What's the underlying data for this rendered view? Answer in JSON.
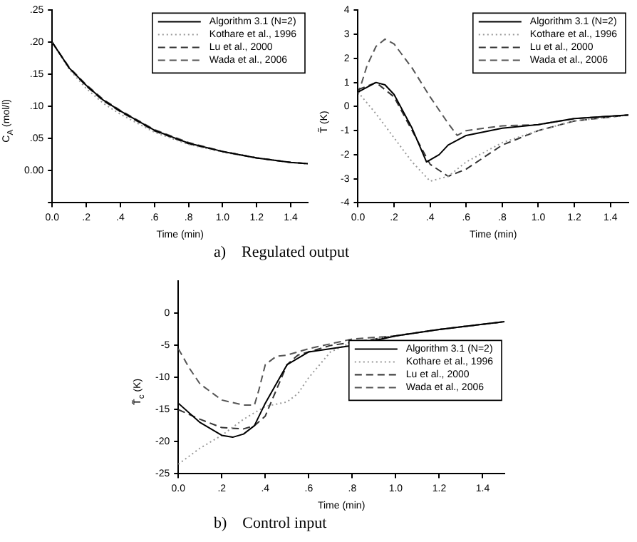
{
  "chart_data": [
    {
      "type": "line",
      "xlabel": "Time (min)",
      "ylabel": "C$_{A}$ (mol/l)",
      "annotations": [
        "a)    Regulated output"
      ],
      "xlim": [
        0,
        1.5
      ],
      "ylim": [
        -0.05,
        0.25
      ],
      "xticks": [
        {
          "value": 0,
          "label": "0.0"
        },
        {
          "value": 0.2,
          "label": ".2"
        },
        {
          "value": 0.4,
          "label": ".4"
        },
        {
          "value": 0.6,
          "label": ".6"
        },
        {
          "value": 0.8,
          "label": ".8"
        },
        {
          "value": 1.0,
          "label": "1.0"
        },
        {
          "value": 1.2,
          "label": "1.2"
        },
        {
          "value": 1.4,
          "label": "1.4"
        }
      ],
      "yticks": [
        {
          "value": -0.05,
          "label": null
        },
        {
          "value": 0,
          "label": "0.00"
        },
        {
          "value": 0.05,
          "label": ".05"
        },
        {
          "value": 0.1,
          "label": ".10"
        },
        {
          "value": 0.15,
          "label": ".15"
        },
        {
          "value": 0.2,
          "label": ".20"
        },
        {
          "value": 0.25,
          "label": ".25"
        }
      ],
      "grid": false,
      "legend": "top right",
      "marker": "none",
      "series": [
        {
          "name": "Algorithm 3.1 (N=2)",
          "color": "#000000",
          "line_style": "solid",
          "x": [
            0,
            0.1,
            0.2,
            0.3,
            0.4,
            0.6,
            0.8,
            1.0,
            1.2,
            1.4,
            1.5
          ],
          "values": [
            0.2,
            0.16,
            0.133,
            0.11,
            0.093,
            0.063,
            0.043,
            0.03,
            0.02,
            0.013,
            0.011
          ]
        },
        {
          "name": "Kothare et al., 1996",
          "color": "#999999",
          "line_style": "dotted",
          "x": [
            0,
            0.1,
            0.2,
            0.3,
            0.4,
            0.6,
            0.8,
            1.0,
            1.2,
            1.4,
            1.5
          ],
          "values": [
            0.2,
            0.158,
            0.128,
            0.105,
            0.088,
            0.06,
            0.041,
            0.029,
            0.02,
            0.013,
            0.011
          ]
        },
        {
          "name": "Lu et al., 2000",
          "color": "#333333",
          "line_style": "dashed",
          "x": [
            0,
            0.1,
            0.2,
            0.3,
            0.4,
            0.6,
            0.8,
            1.0,
            1.2,
            1.4,
            1.5
          ],
          "values": [
            0.2,
            0.16,
            0.132,
            0.109,
            0.092,
            0.062,
            0.042,
            0.03,
            0.02,
            0.013,
            0.011
          ]
        },
        {
          "name": "Wada et al., 2006",
          "color": "#555555",
          "line_style": "dashed",
          "x": [
            0,
            0.1,
            0.2,
            0.3,
            0.4,
            0.6,
            0.8,
            1.0,
            1.2,
            1.4,
            1.5
          ],
          "values": [
            0.2,
            0.161,
            0.134,
            0.111,
            0.094,
            0.064,
            0.044,
            0.03,
            0.02,
            0.013,
            0.011
          ]
        }
      ]
    },
    {
      "type": "line",
      "xlabel": "Time (min)",
      "ylabel": "T̃ (K)",
      "xlim": [
        0,
        1.5
      ],
      "ylim": [
        -4,
        4
      ],
      "xticks": [
        {
          "value": 0,
          "label": "0.0"
        },
        {
          "value": 0.2,
          "label": ".2"
        },
        {
          "value": 0.4,
          "label": ".4"
        },
        {
          "value": 0.6,
          "label": ".6"
        },
        {
          "value": 0.8,
          "label": ".8"
        },
        {
          "value": 1.0,
          "label": "1.0"
        },
        {
          "value": 1.2,
          "label": "1.2"
        },
        {
          "value": 1.4,
          "label": "1.4"
        }
      ],
      "yticks": [
        -4,
        -3,
        -2,
        -1,
        0,
        1,
        2,
        3,
        4
      ],
      "grid": false,
      "legend": "top right",
      "marker": "none",
      "series": [
        {
          "name": "Algorithm 3.1 (N=2)",
          "color": "#000000",
          "line_style": "solid",
          "x": [
            0,
            0.1,
            0.15,
            0.2,
            0.3,
            0.38,
            0.45,
            0.5,
            0.6,
            0.8,
            1.0,
            1.2,
            1.5
          ],
          "values": [
            0.6,
            1.0,
            0.9,
            0.5,
            -0.9,
            -2.3,
            -2.0,
            -1.6,
            -1.2,
            -0.9,
            -0.75,
            -0.5,
            -0.35
          ]
        },
        {
          "name": "Kothare et al., 1996",
          "color": "#999999",
          "line_style": "dotted",
          "x": [
            0,
            0.1,
            0.2,
            0.3,
            0.4,
            0.5,
            0.6,
            0.8,
            1.0,
            1.2,
            1.5
          ],
          "values": [
            0.6,
            -0.3,
            -1.3,
            -2.3,
            -3.1,
            -2.9,
            -2.3,
            -1.5,
            -1.0,
            -0.6,
            -0.35
          ]
        },
        {
          "name": "Lu et al., 2000",
          "color": "#333333",
          "line_style": "dashed",
          "x": [
            0,
            0.1,
            0.2,
            0.3,
            0.4,
            0.5,
            0.6,
            0.8,
            1.0,
            1.2,
            1.5
          ],
          "values": [
            0.7,
            1.0,
            0.4,
            -1.0,
            -2.4,
            -2.9,
            -2.6,
            -1.6,
            -1.0,
            -0.6,
            -0.35
          ]
        },
        {
          "name": "Wada et al., 2006",
          "color": "#555555",
          "line_style": "dashed",
          "x": [
            0,
            0.05,
            0.1,
            0.15,
            0.2,
            0.3,
            0.4,
            0.5,
            0.55,
            0.6,
            0.8,
            1.0,
            1.2,
            1.5
          ],
          "values": [
            0.5,
            1.7,
            2.5,
            2.8,
            2.6,
            1.6,
            0.4,
            -0.7,
            -1.2,
            -1.0,
            -0.8,
            -0.75,
            -0.5,
            -0.35
          ]
        }
      ]
    },
    {
      "type": "line",
      "xlabel": "Time (min)",
      "ylabel": "T̃$_{c}$ (K)",
      "annotations": [
        "b)    Control input"
      ],
      "xlim": [
        0,
        1.5
      ],
      "ylim": [
        -25,
        5
      ],
      "xticks": [
        {
          "value": 0,
          "label": "0.0"
        },
        {
          "value": 0.2,
          "label": ".2"
        },
        {
          "value": 0.4,
          "label": ".4"
        },
        {
          "value": 0.6,
          "label": ".6"
        },
        {
          "value": 0.8,
          "label": ".8"
        },
        {
          "value": 1.0,
          "label": "1.0"
        },
        {
          "value": 1.2,
          "label": "1.2"
        },
        {
          "value": 1.4,
          "label": "1.4"
        }
      ],
      "yticks": [
        -25,
        -20,
        -15,
        -10,
        -5,
        0
      ],
      "grid": false,
      "legend": "right",
      "marker": "none",
      "series": [
        {
          "name": "Algorithm 3.1 (N=2)",
          "color": "#000000",
          "line_style": "solid",
          "x": [
            0,
            0.1,
            0.2,
            0.25,
            0.3,
            0.35,
            0.4,
            0.45,
            0.5,
            0.6,
            0.8,
            1.0,
            1.2,
            1.5
          ],
          "values": [
            -14,
            -17,
            -19,
            -19.3,
            -18.8,
            -17.5,
            -14,
            -11,
            -8,
            -6,
            -5,
            -3.5,
            -2.5,
            -1.3
          ]
        },
        {
          "name": "Kothare et al., 1996",
          "color": "#999999",
          "line_style": "dotted",
          "x": [
            0,
            0.1,
            0.2,
            0.3,
            0.4,
            0.5,
            0.55,
            0.6,
            0.7,
            0.8,
            1.0,
            1.2,
            1.5
          ],
          "values": [
            -23.5,
            -21,
            -19,
            -16.5,
            -14.5,
            -13.8,
            -12.5,
            -10,
            -6,
            -4.5,
            -3.5,
            -2.5,
            -1.3
          ]
        },
        {
          "name": "Lu et al., 2000",
          "color": "#333333",
          "line_style": "dashed",
          "x": [
            0,
            0.1,
            0.2,
            0.3,
            0.35,
            0.4,
            0.45,
            0.5,
            0.55,
            0.7,
            0.8,
            1.0,
            1.2,
            1.5
          ],
          "values": [
            -15,
            -16.5,
            -17.8,
            -18,
            -17.5,
            -16,
            -12,
            -8,
            -6.5,
            -5,
            -4.5,
            -3.5,
            -2.5,
            -1.3
          ]
        },
        {
          "name": "Wada et al., 2006",
          "color": "#555555",
          "line_style": "dashed",
          "x": [
            0,
            0.05,
            0.1,
            0.2,
            0.3,
            0.35,
            0.37,
            0.4,
            0.45,
            0.5,
            0.6,
            0.8,
            1.0,
            1.2,
            1.5
          ],
          "values": [
            -5.5,
            -8.5,
            -11,
            -13.5,
            -14.3,
            -14.3,
            -12,
            -8,
            -6.7,
            -6.5,
            -5.5,
            -4,
            -3.5,
            -2.5,
            -1.3
          ]
        }
      ]
    }
  ]
}
